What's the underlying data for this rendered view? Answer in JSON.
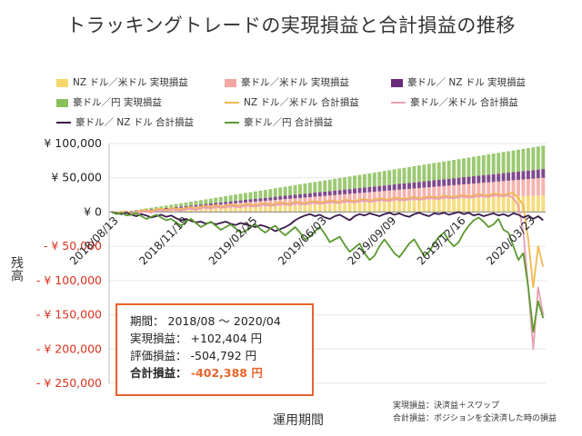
{
  "title": "トラッキングトレードの実現損益と合計損益の推移",
  "legend": [
    {
      "label": "NZ ドル／米ドル 実現損益",
      "kind": "bar",
      "color": "#f5d66a"
    },
    {
      "label": "豪ドル／米ドル 実現損益",
      "kind": "bar",
      "color": "#f4a6a0"
    },
    {
      "label": "豪ドル／ NZ ドル 実現損益",
      "kind": "bar",
      "color": "#6a2a7a"
    },
    {
      "label": "豪ドル／円 実現損益",
      "kind": "bar",
      "color": "#8bbf5a"
    },
    {
      "label": "NZ ドル／米ドル 合計損益",
      "kind": "line",
      "color": "#f0b850"
    },
    {
      "label": "豪ドル／米ドル 合計損益",
      "kind": "line",
      "color": "#e8a0b0"
    },
    {
      "label": "豪ドル／ NZ ドル 合計損益",
      "kind": "line",
      "color": "#3a1a4a"
    },
    {
      "label": "豪ドル／円 合計損益",
      "kind": "line",
      "color": "#5a9a30"
    }
  ],
  "summary": {
    "period_label": "期間：",
    "period_value": "2018/08 ～ 2020/04",
    "realized_label": "実現損益：",
    "realized_value": "+102,404 円",
    "unrealized_label": "評価損益：",
    "unrealized_value": "-504,792 円",
    "total_label": "合計損益：",
    "total_value": "-402,388 円"
  },
  "notes": {
    "line1": "実現損益：決済益＋スワップ",
    "line2": "合計損益：ポジションを全決済した時の損益"
  },
  "chart_data": {
    "type": "bar+line",
    "title": "トラッキングトレードの実現損益と合計損益の推移",
    "xlabel": "運用期間",
    "ylabel": "残高",
    "ylim": [
      -250000,
      100000
    ],
    "y_ticks": [
      {
        "value": 100000,
        "label": "¥ 100,000"
      },
      {
        "value": 50000,
        "label": "¥ 50,000"
      },
      {
        "value": 0,
        "label": "¥ 0"
      },
      {
        "value": -50000,
        "label": "- ¥ 50,000"
      },
      {
        "value": -100000,
        "label": "- ¥ 100,000"
      },
      {
        "value": -150000,
        "label": "- ¥ 150,000"
      },
      {
        "value": -200000,
        "label": "- ¥ 200,000"
      },
      {
        "value": -250000,
        "label": "- ¥ 250,000"
      }
    ],
    "x_ticks": [
      {
        "index": 0,
        "label": "2018/08/13"
      },
      {
        "index": 14,
        "label": "2018/11/19"
      },
      {
        "index": 28,
        "label": "2019/02/25"
      },
      {
        "index": 42,
        "label": "2019/06/03"
      },
      {
        "index": 56,
        "label": "2019/09/09"
      },
      {
        "index": 70,
        "label": "2019/12/16"
      },
      {
        "index": 84,
        "label": "2020/03/23"
      }
    ],
    "n_weeks": 88,
    "series": [
      {
        "name": "NZ ドル／米ドル 実現損益",
        "type": "bar",
        "color": "#f5d66a",
        "values": [
          0,
          0,
          0,
          200,
          400,
          600,
          800,
          1000,
          1200,
          1400,
          1600,
          1800,
          2000,
          2300,
          2600,
          2900,
          3200,
          3500,
          3800,
          4100,
          4400,
          4700,
          5000,
          5300,
          5600,
          5900,
          6200,
          6500,
          6800,
          7100,
          7400,
          7700,
          8000,
          8300,
          8600,
          8900,
          9200,
          9500,
          9800,
          10100,
          10400,
          10700,
          11000,
          11300,
          11600,
          11900,
          12200,
          12500,
          12800,
          13100,
          13400,
          13700,
          14000,
          14300,
          14600,
          14900,
          15200,
          15500,
          15800,
          16100,
          16400,
          16700,
          17000,
          17300,
          17600,
          17900,
          18200,
          18500,
          18800,
          19100,
          19400,
          19700,
          20000,
          20300,
          20600,
          20900,
          21200,
          21500,
          21800,
          22100,
          22400,
          22700,
          23000,
          23300,
          23600,
          23900,
          24200,
          24500
        ]
      },
      {
        "name": "豪ドル／米ドル 実現損益",
        "type": "bar",
        "color": "#f4a6a0",
        "values": [
          0,
          0,
          0,
          300,
          600,
          900,
          1200,
          1500,
          1800,
          2100,
          2400,
          2700,
          3000,
          3300,
          3600,
          3900,
          4200,
          4500,
          4800,
          5100,
          5400,
          5700,
          6000,
          6300,
          6600,
          6900,
          7200,
          7500,
          7800,
          8100,
          8400,
          8700,
          9000,
          9300,
          9600,
          9900,
          10200,
          10500,
          10800,
          11100,
          11400,
          11700,
          12000,
          12300,
          12600,
          12900,
          13200,
          13500,
          13800,
          14100,
          14400,
          14700,
          15000,
          15300,
          15600,
          15900,
          16200,
          16500,
          16800,
          17100,
          17400,
          17700,
          18000,
          18300,
          18600,
          18900,
          19200,
          19500,
          19800,
          20100,
          20400,
          20700,
          21000,
          21300,
          21600,
          21900,
          22200,
          22500,
          22800,
          23100,
          23400,
          23700,
          24000,
          24300,
          24600,
          24900,
          25200,
          25500
        ]
      },
      {
        "name": "豪ドル／ NZ ドル 実現損益",
        "type": "bar",
        "color": "#6a2a7a",
        "values": [
          0,
          0,
          0,
          200,
          300,
          500,
          600,
          800,
          900,
          1100,
          1200,
          1400,
          1500,
          1700,
          1800,
          2000,
          2100,
          2300,
          2400,
          2600,
          2700,
          2900,
          3000,
          3200,
          3300,
          3500,
          3600,
          3800,
          3900,
          4100,
          4200,
          4400,
          4500,
          4700,
          4800,
          5000,
          5100,
          5300,
          5400,
          5600,
          5700,
          5900,
          6000,
          6200,
          6300,
          6500,
          6600,
          6800,
          6900,
          7100,
          7200,
          7400,
          7500,
          7700,
          7800,
          8000,
          8100,
          8300,
          8400,
          8600,
          8700,
          8900,
          9000,
          9200,
          9300,
          9500,
          9600,
          9800,
          9900,
          10100,
          10200,
          10400,
          10500,
          10700,
          10800,
          11000,
          11100,
          11300,
          11400,
          11600,
          11700,
          11900,
          12000,
          12200,
          12300,
          12500,
          12600,
          12800
        ]
      },
      {
        "name": "豪ドル／円 実現損益",
        "type": "bar",
        "color": "#8bbf5a",
        "values": [
          0,
          0,
          0,
          400,
          800,
          1200,
          1600,
          2000,
          2400,
          2800,
          3200,
          3600,
          4000,
          4400,
          4800,
          5200,
          5600,
          6000,
          6400,
          6800,
          7200,
          7600,
          8000,
          8400,
          8800,
          9200,
          9600,
          10000,
          10400,
          10800,
          11200,
          11600,
          12000,
          12400,
          12800,
          13200,
          13600,
          14000,
          14400,
          14800,
          15200,
          15600,
          16000,
          16400,
          16800,
          17200,
          17600,
          18000,
          18400,
          18800,
          19200,
          19600,
          20000,
          20400,
          20800,
          21200,
          21600,
          22000,
          22400,
          22800,
          23200,
          23600,
          24000,
          24400,
          24800,
          25200,
          25600,
          26000,
          26400,
          26800,
          27200,
          27600,
          28000,
          28400,
          28800,
          29200,
          29600,
          30000,
          30400,
          30800,
          31200,
          31600,
          32000,
          32400,
          32800,
          33200,
          33600,
          34000
        ]
      },
      {
        "name": "NZ ドル／米ドル 合計損益",
        "type": "line",
        "color": "#f0b850",
        "values": [
          0,
          -1000,
          0,
          1000,
          -2000,
          -1000,
          2000,
          3000,
          1000,
          4000,
          5000,
          3000,
          6000,
          5000,
          4000,
          6000,
          7000,
          5000,
          8000,
          9000,
          7000,
          10000,
          8000,
          9000,
          11000,
          10000,
          9000,
          12000,
          11000,
          10000,
          12000,
          13000,
          11000,
          12000,
          14000,
          13000,
          12000,
          15000,
          14000,
          13000,
          15000,
          16000,
          14000,
          15000,
          17000,
          16000,
          15000,
          18000,
          17000,
          16000,
          18000,
          19000,
          17000,
          18000,
          20000,
          19000,
          18000,
          21000,
          20000,
          19000,
          21000,
          22000,
          20000,
          21000,
          23000,
          22000,
          21000,
          24000,
          23000,
          22000,
          24000,
          25000,
          23000,
          24000,
          26000,
          25000,
          24000,
          27000,
          26000,
          25000,
          27000,
          28000,
          20000,
          10000,
          -40000,
          -110000,
          -50000,
          -80000
        ]
      },
      {
        "name": "豪ドル／米ドル 合計損益",
        "type": "line",
        "color": "#e8a0b0",
        "values": [
          0,
          -2000,
          -1000,
          0,
          -3000,
          -2000,
          0,
          1000,
          -1000,
          2000,
          3000,
          1000,
          4000,
          3000,
          2000,
          4000,
          5000,
          3000,
          6000,
          7000,
          5000,
          8000,
          6000,
          7000,
          9000,
          8000,
          7000,
          10000,
          9000,
          8000,
          10000,
          11000,
          9000,
          10000,
          12000,
          11000,
          10000,
          13000,
          12000,
          11000,
          13000,
          14000,
          12000,
          13000,
          15000,
          14000,
          13000,
          16000,
          15000,
          14000,
          16000,
          17000,
          15000,
          16000,
          18000,
          17000,
          16000,
          19000,
          18000,
          17000,
          19000,
          20000,
          18000,
          19000,
          21000,
          20000,
          19000,
          22000,
          21000,
          20000,
          22000,
          23000,
          21000,
          22000,
          24000,
          23000,
          22000,
          25000,
          24000,
          23000,
          25000,
          20000,
          10000,
          -30000,
          -110000,
          -200000,
          -110000,
          -150000
        ]
      },
      {
        "name": "豪ドル／ NZ ドル 合計損益",
        "type": "line",
        "color": "#3a1a4a",
        "values": [
          0,
          -2000,
          -3000,
          -1000,
          -4000,
          -6000,
          -3000,
          -5000,
          -8000,
          -6000,
          -4000,
          -7000,
          -5000,
          -9000,
          -12000,
          -10000,
          -13000,
          -15000,
          -14000,
          -17000,
          -15000,
          -18000,
          -16000,
          -14000,
          -17000,
          -19000,
          -16000,
          -18000,
          -20000,
          -22000,
          -19000,
          -21000,
          -24000,
          -28000,
          -25000,
          -22000,
          -18000,
          -12000,
          -8000,
          -5000,
          -3000,
          -6000,
          -4000,
          -8000,
          -10000,
          -6000,
          -4000,
          -8000,
          -12000,
          -6000,
          -3000,
          -5000,
          -2000,
          -4000,
          -6000,
          -3000,
          -1000,
          -4000,
          -2000,
          -5000,
          -7000,
          -3000,
          -1000,
          -4000,
          -6000,
          -2000,
          -3000,
          -1000,
          -4000,
          -2000,
          0,
          -3000,
          -1000,
          -5000,
          -3000,
          -6000,
          -4000,
          -2000,
          -5000,
          -3000,
          -6000,
          -2000,
          -4000,
          -8000,
          -5000,
          -10000,
          -6000,
          -12000
        ]
      },
      {
        "name": "豪ドル／円 合計損益",
        "type": "line",
        "color": "#5a9a30",
        "values": [
          0,
          -3000,
          -1000,
          -5000,
          -4000,
          -2000,
          -6000,
          -10000,
          -7000,
          -4000,
          -8000,
          -12000,
          -10000,
          -15000,
          -20000,
          -14000,
          -10000,
          -16000,
          -22000,
          -18000,
          -14000,
          -20000,
          -26000,
          -22000,
          -18000,
          -24000,
          -30000,
          -28000,
          -22000,
          -18000,
          -25000,
          -30000,
          -24000,
          -20000,
          -28000,
          -34000,
          -28000,
          -22000,
          -30000,
          -40000,
          -36000,
          -28000,
          -22000,
          -32000,
          -44000,
          -40000,
          -36000,
          -48000,
          -58000,
          -52000,
          -46000,
          -60000,
          -70000,
          -64000,
          -50000,
          -40000,
          -50000,
          -60000,
          -66000,
          -56000,
          -46000,
          -40000,
          -52000,
          -64000,
          -58000,
          -46000,
          -36000,
          -30000,
          -42000,
          -50000,
          -44000,
          -30000,
          -20000,
          -12000,
          -8000,
          -14000,
          -22000,
          -18000,
          -10000,
          -26000,
          -30000,
          -50000,
          -70000,
          -60000,
          -110000,
          -175000,
          -130000,
          -155000
        ]
      }
    ]
  }
}
